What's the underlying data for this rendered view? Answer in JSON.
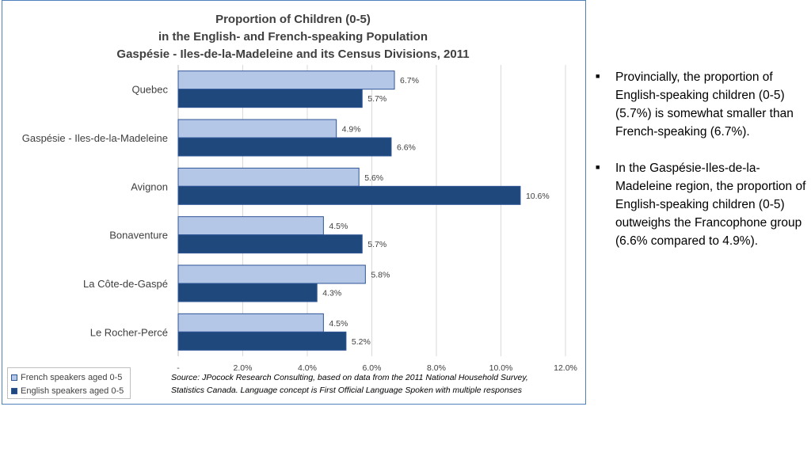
{
  "chart_data": {
    "type": "bar",
    "orientation": "horizontal",
    "title": [
      "Proportion of Children (0-5)",
      "in the English- and French-speaking Population",
      "Gaspésie - Iles-de-la-Madeleine and its Census Divisions, 2011"
    ],
    "categories": [
      "Quebec",
      "Gaspésie - Iles-de-la-Madeleine",
      "Avignon",
      "Bonaventure",
      "La Côte-de-Gaspé",
      "Le Rocher-Percé"
    ],
    "series": [
      {
        "name": "French speakers aged 0-5",
        "values": [
          6.7,
          4.9,
          5.6,
          4.5,
          5.8,
          4.5
        ],
        "labels": [
          "6.7%",
          "4.9%",
          "5.6%",
          "4.5%",
          "5.8%",
          "4.5%"
        ],
        "color": "#b4c7e7"
      },
      {
        "name": "English speakers aged 0-5",
        "values": [
          5.7,
          6.6,
          10.6,
          5.7,
          4.3,
          5.2
        ],
        "labels": [
          "5.7%",
          "6.6%",
          "10.6%",
          "5.7%",
          "4.3%",
          "5.2%"
        ],
        "color": "#1f497d"
      }
    ],
    "xlim": [
      0,
      12
    ],
    "xticks": [
      0,
      2,
      4,
      6,
      8,
      10,
      12
    ],
    "xtick_labels": [
      "-",
      "2.0%",
      "4.0%",
      "6.0%",
      "8.0%",
      "10.0%",
      "12.0%"
    ],
    "grid": true,
    "legend_position": "bottom-left",
    "source": [
      "Source: JPocock Research Consulting, based on data from the 2011 National Household Survey,",
      "Statistics Canada. Language concept is First Official Language Spoken with multiple responses"
    ]
  },
  "legend": {
    "french_label": "French speakers aged 0-5",
    "english_label": "English speakers aged 0-5"
  },
  "notes": {
    "bullet_symbol": "■",
    "bullets": [
      "Provincially, the proportion of English-speaking children (0-5) (5.7%) is somewhat smaller than French-speaking (6.7%).",
      "In the Gaspésie-Iles-de-la-Madeleine region, the proportion of English-speaking children (0-5) outweighs the Francophone group (6.6% compared to 4.9%)."
    ]
  }
}
